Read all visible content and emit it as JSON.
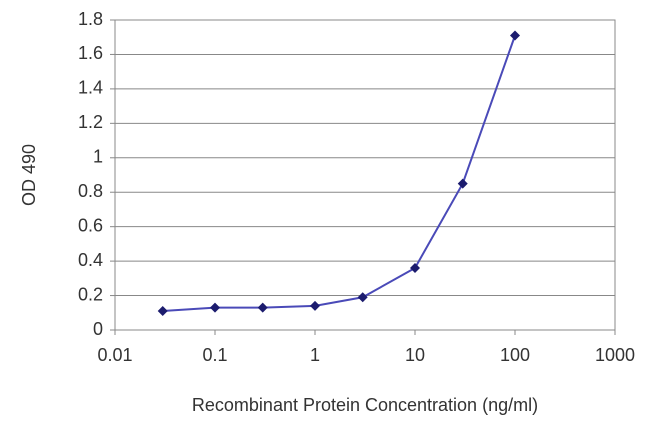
{
  "chart_data": {
    "type": "line",
    "x": [
      0.03,
      0.1,
      0.3,
      1,
      3,
      10,
      30,
      100
    ],
    "series": [
      {
        "color": "#4a4ab8",
        "marker_color": "#1c1c6e",
        "values": [
          0.11,
          0.13,
          0.13,
          0.14,
          0.19,
          0.36,
          0.85,
          1.71
        ]
      }
    ],
    "xlabel": "Recombinant Protein Concentration (ng/ml)",
    "ylabel": "OD 490",
    "xlog": true,
    "xlim": [
      0.01,
      1000
    ],
    "xticks": [
      0.01,
      0.1,
      1,
      10,
      100,
      1000
    ],
    "ylim": [
      0,
      1.8
    ],
    "yticks": [
      0,
      0.2,
      0.4,
      0.6,
      0.8,
      1,
      1.2,
      1.4,
      1.6,
      1.8
    ],
    "grid": true
  }
}
